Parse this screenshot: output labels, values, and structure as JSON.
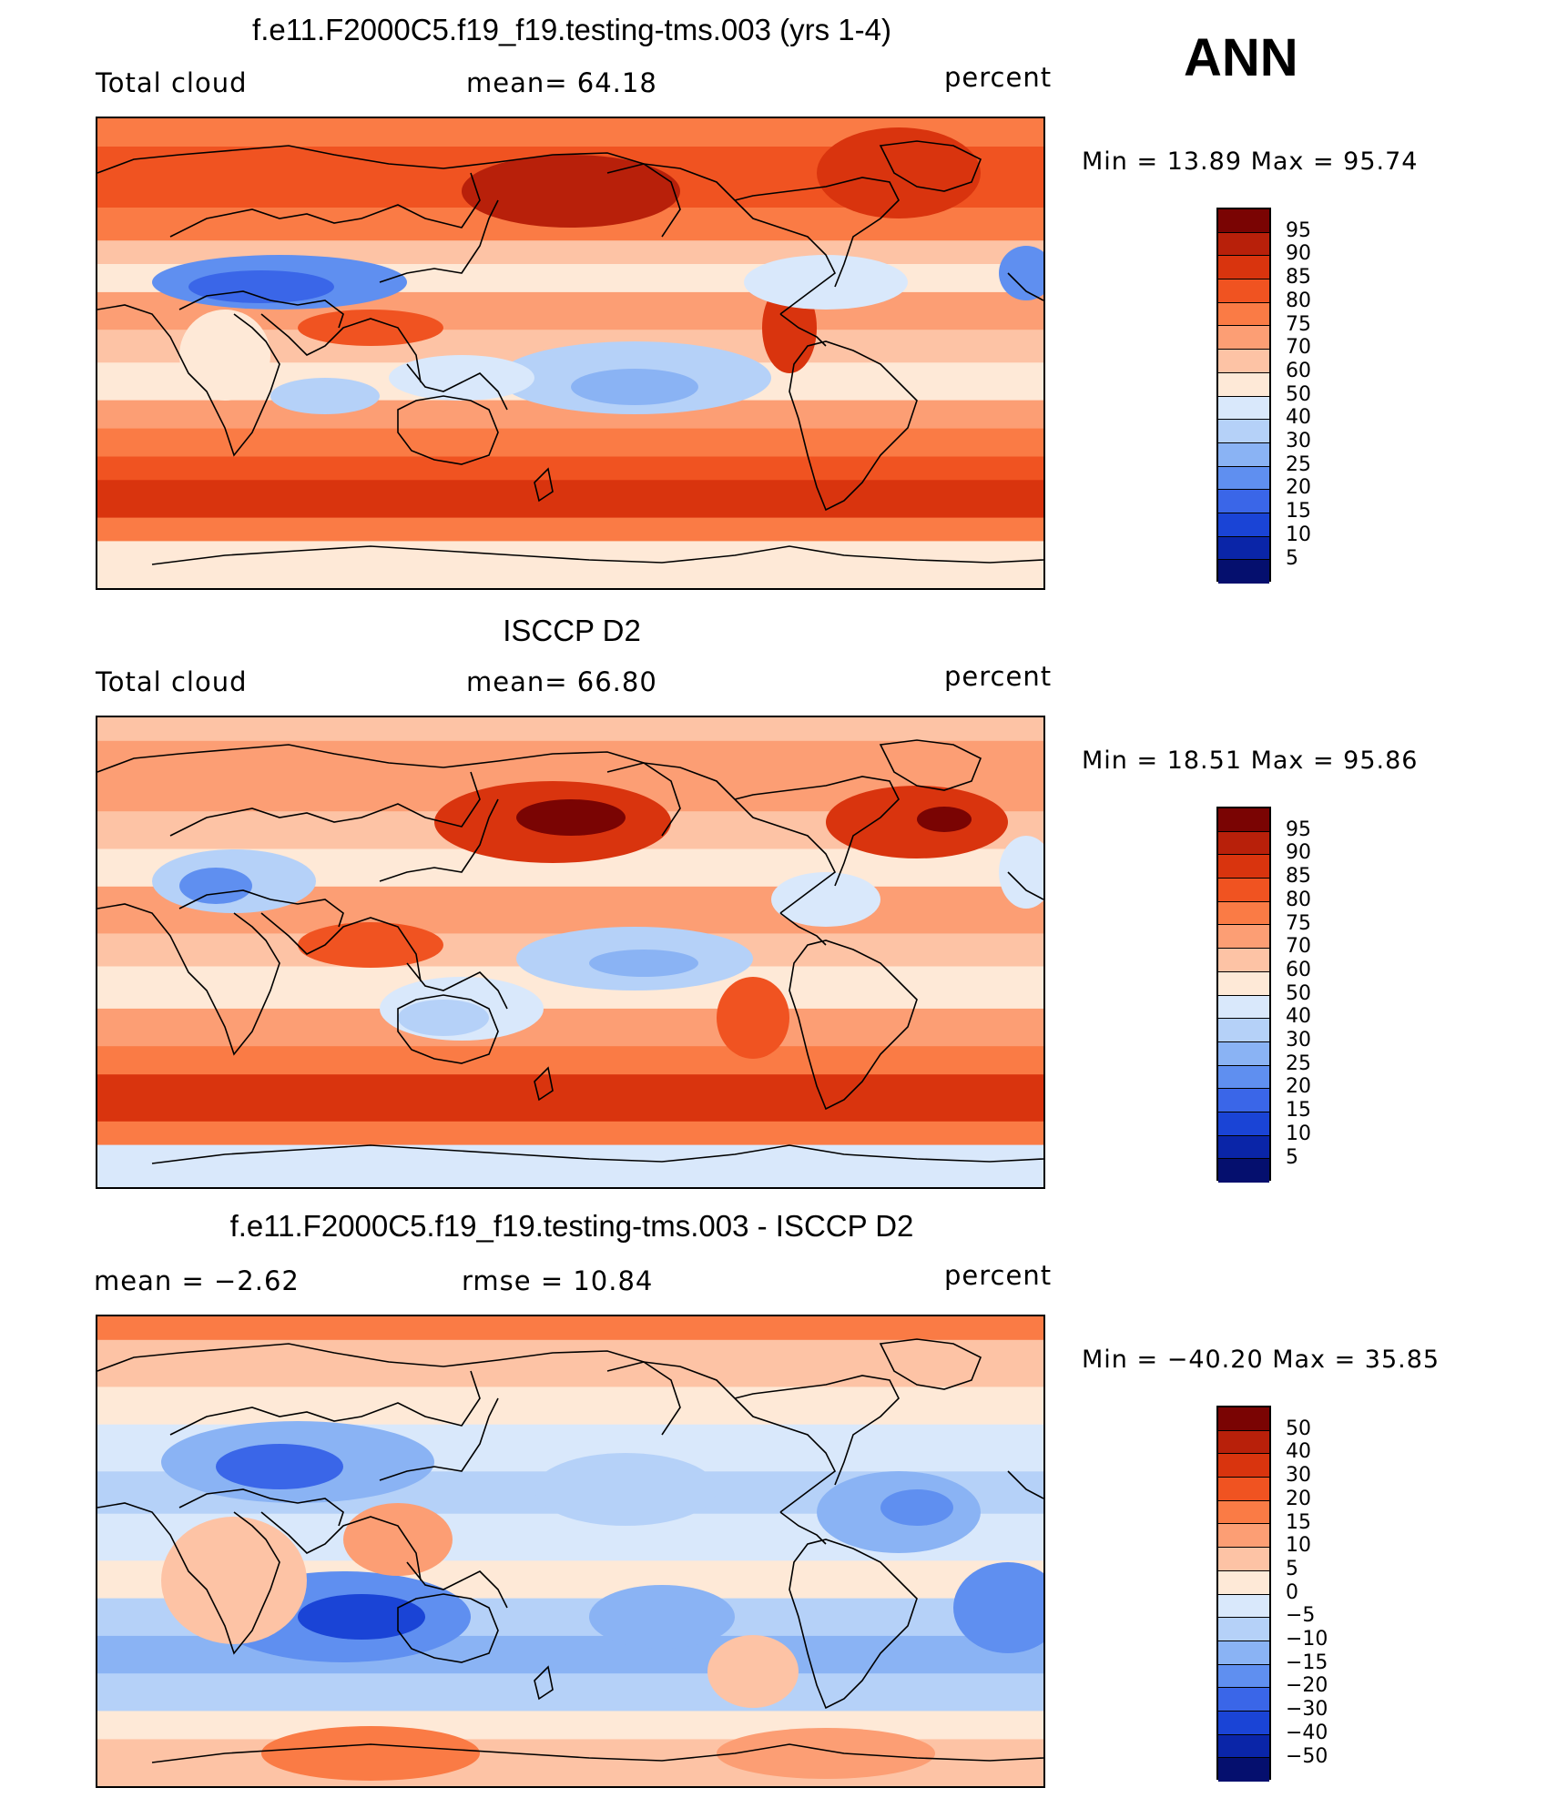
{
  "season": "ANN",
  "panels": [
    {
      "id": "model",
      "title": "f.e11.F2000C5.f19_f19.testing-tms.003 (yrs 1-4)",
      "left_label": "Total cloud",
      "mid_label": "mean=   64.18",
      "right_label": "percent",
      "minmax": "Min =   13.89 Max =   95.74",
      "colorbar": {
        "labels": [
          "95",
          "90",
          "85",
          "80",
          "75",
          "70",
          "60",
          "50",
          "40",
          "30",
          "25",
          "20",
          "15",
          "10",
          "5"
        ],
        "colors": [
          "#7a0403",
          "#b8200a",
          "#d9340e",
          "#f05321",
          "#fa7b45",
          "#fc9e74",
          "#fdc3a5",
          "#fee9d7",
          "#d9e8fb",
          "#b5d1f8",
          "#8ab3f4",
          "#5f8ff0",
          "#3a66e8",
          "#1a44d6",
          "#0a25a8",
          "#050f6e"
        ]
      }
    },
    {
      "id": "obs",
      "title": "ISCCP D2",
      "left_label": "Total cloud",
      "mid_label": "mean=   66.80",
      "right_label": "percent",
      "minmax": "Min =   18.51 Max =   95.86",
      "colorbar": {
        "labels": [
          "95",
          "90",
          "85",
          "80",
          "75",
          "70",
          "60",
          "50",
          "40",
          "30",
          "25",
          "20",
          "15",
          "10",
          "5"
        ],
        "colors": [
          "#7a0403",
          "#b8200a",
          "#d9340e",
          "#f05321",
          "#fa7b45",
          "#fc9e74",
          "#fdc3a5",
          "#fee9d7",
          "#d9e8fb",
          "#b5d1f8",
          "#8ab3f4",
          "#5f8ff0",
          "#3a66e8",
          "#1a44d6",
          "#0a25a8",
          "#050f6e"
        ]
      }
    },
    {
      "id": "diff",
      "title": "f.e11.F2000C5.f19_f19.testing-tms.003 - ISCCP D2",
      "left_label": "mean =   −2.62",
      "mid_label": "rmse =   10.84",
      "right_label": "percent",
      "minmax": "Min = −40.20 Max =   35.85",
      "colorbar": {
        "labels": [
          "50",
          "40",
          "30",
          "20",
          "15",
          "10",
          "5",
          "0",
          "−5",
          "−10",
          "−15",
          "−20",
          "−30",
          "−40",
          "−50"
        ],
        "colors": [
          "#7a0403",
          "#b8200a",
          "#d9340e",
          "#f05321",
          "#fa7b45",
          "#fc9e74",
          "#fdc3a5",
          "#fee9d7",
          "#d9e8fb",
          "#b5d1f8",
          "#8ab3f4",
          "#5f8ff0",
          "#3a66e8",
          "#1a44d6",
          "#0a25a8",
          "#050f6e"
        ]
      }
    }
  ]
}
